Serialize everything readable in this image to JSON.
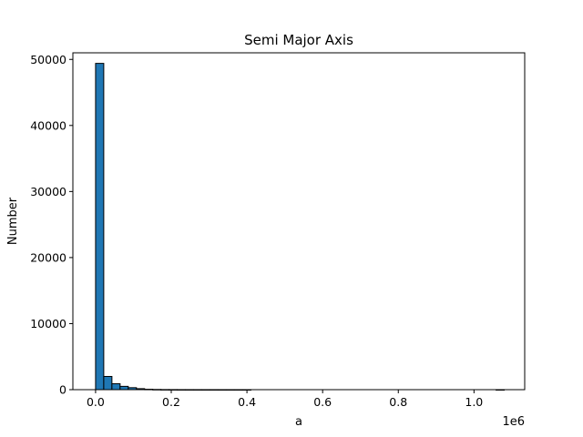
{
  "chart_data": {
    "type": "bar",
    "title": "Semi Major Axis",
    "xlabel": "a",
    "ylabel": "Number",
    "x_offset_label": "1e6",
    "xlim": [
      -60000,
      1134000
    ],
    "ylim": [
      0,
      51000
    ],
    "x_ticks": [
      0,
      200000,
      400000,
      600000,
      800000,
      1000000
    ],
    "x_tick_labels": [
      "0.0",
      "0.2",
      "0.4",
      "0.6",
      "0.8",
      "1.0"
    ],
    "y_ticks": [
      0,
      10000,
      20000,
      30000,
      40000,
      50000
    ],
    "y_tick_labels": [
      "0",
      "10000",
      "20000",
      "30000",
      "40000",
      "50000"
    ],
    "bin_edges": [
      0,
      21600,
      43200,
      64800,
      86400,
      108000,
      129600,
      151200,
      172800,
      194400,
      216000,
      237600,
      259200,
      280800,
      302400,
      324000,
      345600,
      367200,
      388800,
      410400,
      432000,
      453600,
      475200,
      496800,
      518400,
      540000,
      561600,
      583200,
      604800,
      626400,
      648000,
      669600,
      691200,
      712800,
      734400,
      756000,
      777600,
      799200,
      820800,
      842400,
      864000,
      885600,
      907200,
      928800,
      950400,
      972000,
      993600,
      1015200,
      1036800,
      1058400,
      1080000
    ],
    "values": [
      49400,
      2000,
      900,
      500,
      300,
      150,
      60,
      30,
      15,
      10,
      5,
      4,
      3,
      2,
      2,
      1,
      1,
      1,
      1,
      0,
      0,
      0,
      0,
      0,
      0,
      0,
      0,
      0,
      0,
      0,
      0,
      0,
      0,
      0,
      0,
      0,
      0,
      0,
      0,
      0,
      0,
      0,
      0,
      0,
      0,
      0,
      0,
      0,
      0,
      1
    ],
    "bar_color": "#1f77b4",
    "edge_color": "#000000",
    "grid": false
  }
}
